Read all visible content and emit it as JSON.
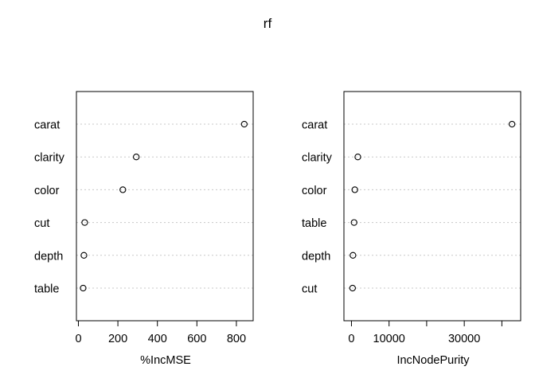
{
  "title": "rf",
  "chart_data": [
    {
      "type": "scatter",
      "style": "dotchart",
      "xlabel": "%IncMSE",
      "ylabel": "",
      "xlim": [
        -10,
        885
      ],
      "xticks": [
        0,
        200,
        400,
        600,
        800
      ],
      "xtick_labels": [
        "0",
        "200",
        "400",
        "600",
        "800"
      ],
      "categories": [
        "carat",
        "clarity",
        "color",
        "cut",
        "depth",
        "table"
      ],
      "values": [
        840,
        293,
        225,
        32,
        28,
        24
      ],
      "gridlines": "dotted horizontal"
    },
    {
      "type": "scatter",
      "style": "dotchart",
      "xlabel": "IncNodePurity",
      "ylabel": "",
      "xlim": [
        -2000,
        45000
      ],
      "xticks": [
        0,
        10000,
        20000,
        30000,
        40000
      ],
      "xtick_labels": [
        "0",
        "10000",
        "",
        "30000",
        ""
      ],
      "categories": [
        "carat",
        "clarity",
        "color",
        "table",
        "depth",
        "cut"
      ],
      "values": [
        42700,
        1700,
        900,
        700,
        400,
        300
      ],
      "gridlines": "dotted horizontal"
    }
  ]
}
